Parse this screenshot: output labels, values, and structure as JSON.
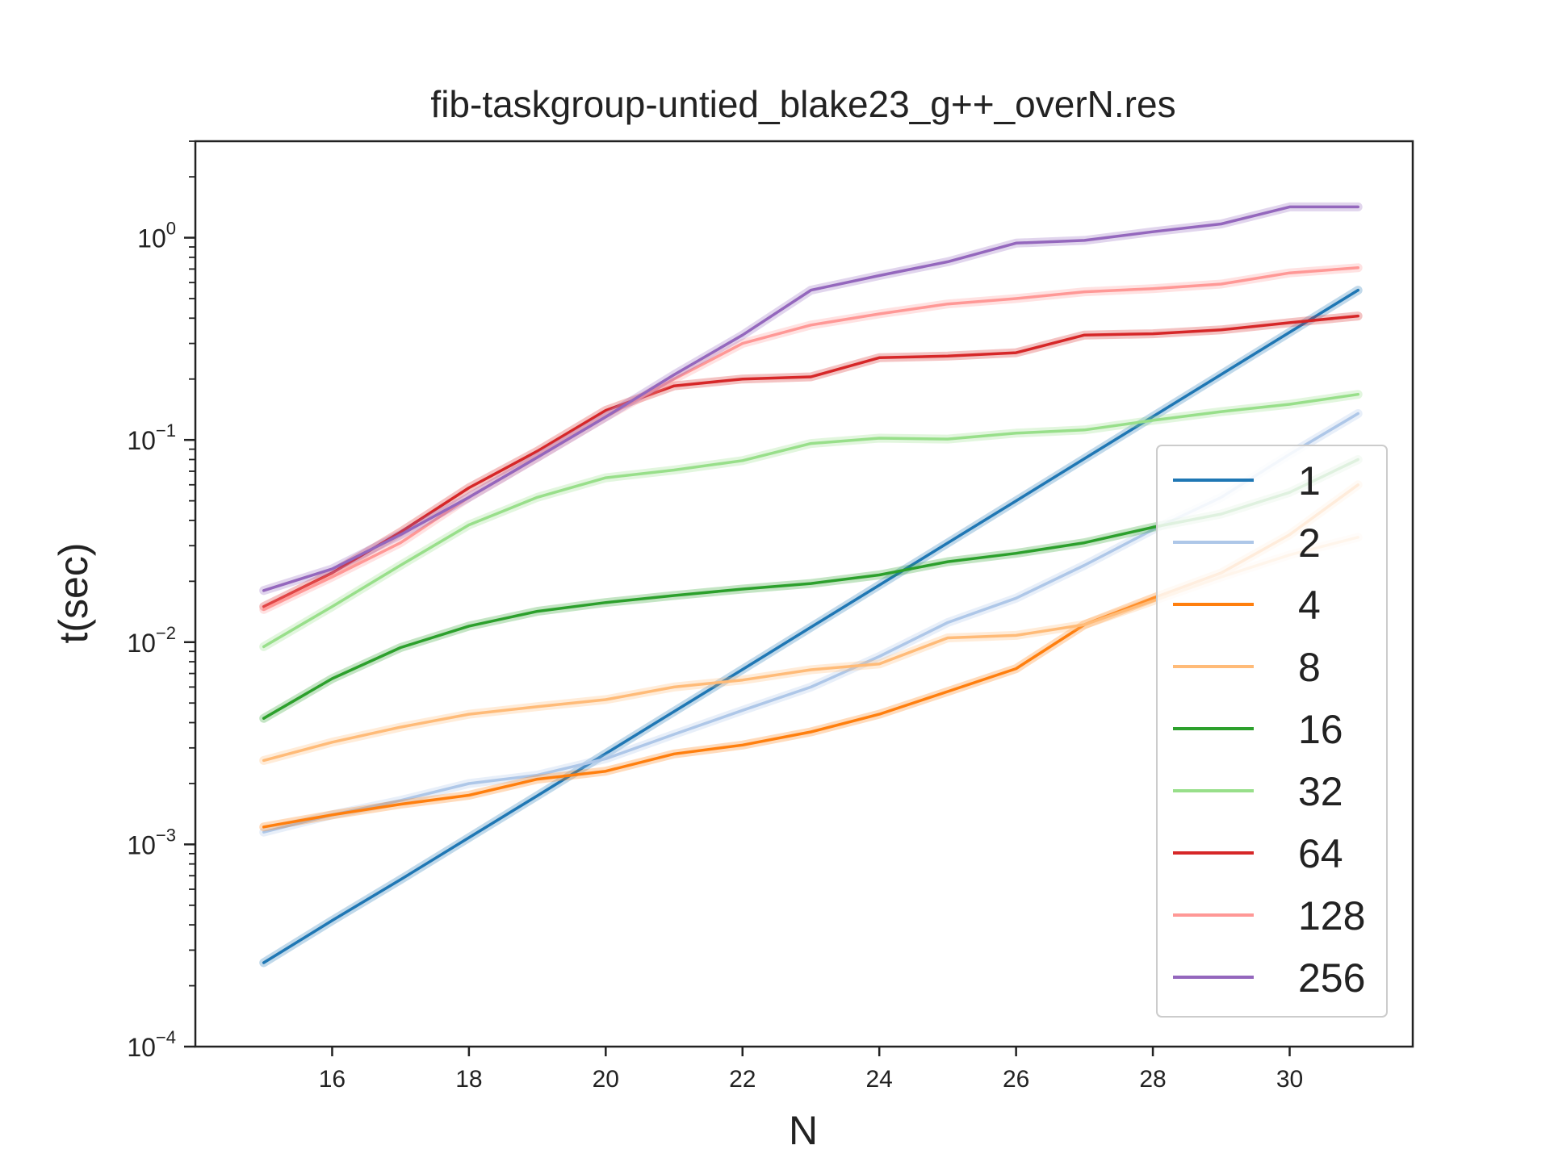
{
  "chart_data": {
    "type": "line",
    "title": "fib-taskgroup-untied_blake23_g++_overN.res",
    "xlabel": "N",
    "ylabel": "t(sec)",
    "yscale": "log",
    "xlim": [
      14.0,
      31.8
    ],
    "ylim": [
      0.0001,
      3.0
    ],
    "xticks": [
      16,
      18,
      20,
      22,
      24,
      26,
      28,
      30
    ],
    "yticks": [
      {
        "value": 0.0001,
        "base": "10",
        "exp": "−4"
      },
      {
        "value": 0.001,
        "base": "10",
        "exp": "−3"
      },
      {
        "value": 0.01,
        "base": "10",
        "exp": "−2"
      },
      {
        "value": 0.1,
        "base": "10",
        "exp": "−1"
      },
      {
        "value": 1,
        "base": "10",
        "exp": "0"
      }
    ],
    "grid": false,
    "legend_position": "lower-right",
    "x": [
      15,
      16,
      17,
      18,
      19,
      20,
      21,
      22,
      23,
      24,
      25,
      26,
      27,
      28,
      29,
      30,
      31
    ],
    "series": [
      {
        "name": "1",
        "color": "#1f77b4",
        "values": [
          0.00026,
          0.00042,
          0.00067,
          0.00108,
          0.00174,
          0.00281,
          0.00454,
          0.00733,
          0.01185,
          0.01914,
          0.03093,
          0.04998,
          0.08077,
          0.13053,
          0.2109,
          0.3407,
          0.55
        ]
      },
      {
        "name": "2",
        "color": "#aec7e8",
        "values": [
          0.00115,
          0.0014,
          0.00165,
          0.002,
          0.0022,
          0.00265,
          0.0035,
          0.0046,
          0.006,
          0.0085,
          0.0125,
          0.0165,
          0.024,
          0.036,
          0.052,
          0.085,
          0.135
        ]
      },
      {
        "name": "4",
        "color": "#ff7f0e",
        "values": [
          0.00122,
          0.0014,
          0.00158,
          0.00175,
          0.0021,
          0.0023,
          0.0028,
          0.0031,
          0.0036,
          0.0044,
          0.0057,
          0.0074,
          0.0122,
          0.0165,
          0.022,
          0.034,
          0.06
        ]
      },
      {
        "name": "8",
        "color": "#ffbb78",
        "values": [
          0.0026,
          0.0032,
          0.0038,
          0.0044,
          0.0048,
          0.0052,
          0.006,
          0.0065,
          0.0073,
          0.0078,
          0.0105,
          0.0108,
          0.0122,
          0.016,
          0.021,
          0.027,
          0.033
        ]
      },
      {
        "name": "16",
        "color": "#2ca02c",
        "values": [
          0.0042,
          0.0066,
          0.0094,
          0.012,
          0.0142,
          0.0157,
          0.017,
          0.0183,
          0.0195,
          0.0215,
          0.025,
          0.0275,
          0.031,
          0.037,
          0.043,
          0.055,
          0.08
        ]
      },
      {
        "name": "32",
        "color": "#98df8a",
        "values": [
          0.0095,
          0.015,
          0.024,
          0.038,
          0.052,
          0.065,
          0.071,
          0.079,
          0.096,
          0.102,
          0.101,
          0.108,
          0.112,
          0.125,
          0.138,
          0.15,
          0.168
        ]
      },
      {
        "name": "64",
        "color": "#d62728",
        "values": [
          0.015,
          0.022,
          0.035,
          0.058,
          0.088,
          0.14,
          0.185,
          0.2,
          0.205,
          0.255,
          0.26,
          0.27,
          0.33,
          0.335,
          0.35,
          0.38,
          0.41
        ]
      },
      {
        "name": "128",
        "color": "#ff9896",
        "values": [
          0.0145,
          0.021,
          0.031,
          0.052,
          0.082,
          0.13,
          0.2,
          0.3,
          0.37,
          0.42,
          0.47,
          0.5,
          0.54,
          0.56,
          0.59,
          0.67,
          0.71
        ]
      },
      {
        "name": "256",
        "color": "#9467bd",
        "values": [
          0.018,
          0.023,
          0.034,
          0.052,
          0.082,
          0.13,
          0.21,
          0.33,
          0.55,
          0.65,
          0.76,
          0.94,
          0.97,
          1.07,
          1.17,
          1.42,
          1.42
        ]
      }
    ]
  }
}
